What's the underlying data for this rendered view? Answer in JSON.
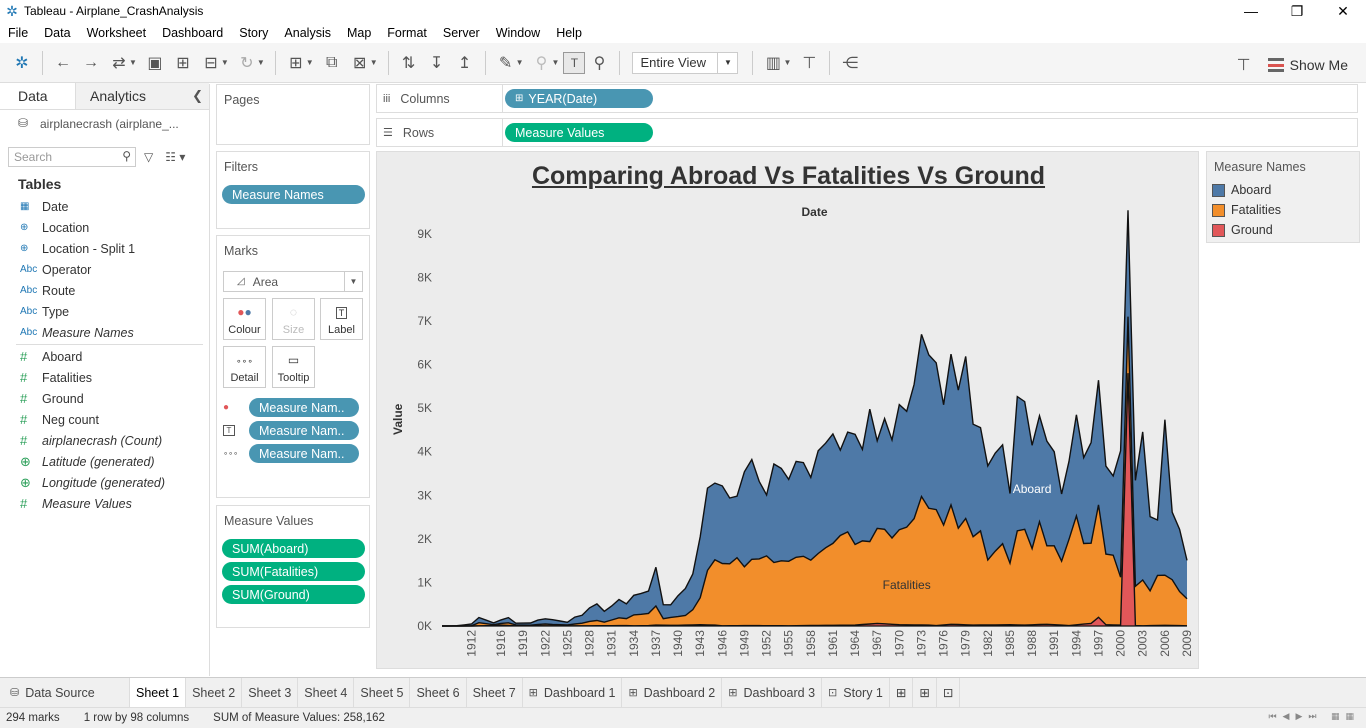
{
  "window": {
    "title": "Tableau - Airplane_CrashAnalysis",
    "minimize": "—",
    "restore": "❐",
    "close": "✕"
  },
  "menu": [
    "File",
    "Data",
    "Worksheet",
    "Dashboard",
    "Story",
    "Analysis",
    "Map",
    "Format",
    "Server",
    "Window",
    "Help"
  ],
  "toolbar": {
    "fit_value": "Entire View",
    "show_me_label": "Show Me"
  },
  "data_pane": {
    "tab_data": "Data",
    "tab_analytics": "Analytics",
    "datasource": "airplanecrash (airplane_...",
    "search_placeholder": "Search",
    "tables_heading": "Tables",
    "dimensions": [
      {
        "icon": "calendar-icon",
        "glyph": "▦",
        "label": "Date"
      },
      {
        "icon": "globe-icon",
        "glyph": "⊕",
        "label": "Location"
      },
      {
        "icon": "globe-split-icon",
        "glyph": "⊕",
        "label": "Location - Split 1"
      },
      {
        "icon": "abc-icon",
        "glyph": "Abc",
        "label": "Operator"
      },
      {
        "icon": "abc-icon",
        "glyph": "Abc",
        "label": "Route"
      },
      {
        "icon": "abc-icon",
        "glyph": "Abc",
        "label": "Type"
      },
      {
        "icon": "abc-icon",
        "glyph": "Abc",
        "label": "Measure Names",
        "italic": true
      }
    ],
    "measures": [
      {
        "icon": "hash-icon",
        "glyph": "#",
        "label": "Aboard"
      },
      {
        "icon": "hash-icon",
        "glyph": "#",
        "label": "Fatalities"
      },
      {
        "icon": "hash-icon",
        "glyph": "#",
        "label": "Ground"
      },
      {
        "icon": "hash-icon",
        "glyph": "#",
        "label": "Neg count"
      },
      {
        "icon": "hash-icon",
        "glyph": "#",
        "label": "airplanecrash (Count)",
        "italic": true
      },
      {
        "icon": "globe-icon",
        "glyph": "⊕",
        "label": "Latitude (generated)",
        "italic": true
      },
      {
        "icon": "globe-icon",
        "glyph": "⊕",
        "label": "Longitude (generated)",
        "italic": true
      },
      {
        "icon": "hash-icon",
        "glyph": "#",
        "label": "Measure Values",
        "italic": true
      }
    ]
  },
  "cards": {
    "pages_title": "Pages",
    "filters_title": "Filters",
    "filter_pill": "Measure Names",
    "marks_title": "Marks",
    "mark_type": "Area",
    "mark_buttons": {
      "colour": "Colour",
      "size": "Size",
      "label": "Label",
      "detail": "Detail",
      "tooltip": "Tooltip"
    },
    "mark_pills": [
      "Measure Nam..",
      "Measure Nam..",
      "Measure Nam.."
    ],
    "measure_values_title": "Measure Values",
    "measure_values_pills": [
      "SUM(Aboard)",
      "SUM(Fatalities)",
      "SUM(Ground)"
    ]
  },
  "shelves": {
    "columns_label": "Columns",
    "columns_pill": "YEAR(Date)",
    "rows_label": "Rows",
    "rows_pill": "Measure Values"
  },
  "legend": {
    "title": "Measure Names",
    "items": [
      {
        "label": "Aboard",
        "color": "#4e79a7"
      },
      {
        "label": "Fatalities",
        "color": "#f28e2b"
      },
      {
        "label": "Ground",
        "color": "#e15759"
      }
    ]
  },
  "chart_data": {
    "type": "area",
    "title": "Comparing Abroad Vs Fatalities Vs Ground",
    "xlabel": "Date",
    "ylabel": "Value",
    "ylim": [
      0,
      9500
    ],
    "y_ticks": [
      "0K",
      "1K",
      "2K",
      "3K",
      "4K",
      "5K",
      "6K",
      "7K",
      "8K",
      "9K"
    ],
    "x_tick_labels": [
      "1912",
      "1916",
      "1919",
      "1922",
      "1925",
      "1928",
      "1931",
      "1934",
      "1937",
      "1940",
      "1943",
      "1946",
      "1949",
      "1952",
      "1955",
      "1958",
      "1961",
      "1964",
      "1967",
      "1970",
      "1973",
      "1976",
      "1979",
      "1982",
      "1985",
      "1988",
      "1991",
      "1994",
      "1997",
      "2000",
      "2003",
      "2006",
      "2009"
    ],
    "annotations": [
      {
        "series": "Aboard",
        "text": "Aboard",
        "x": 1988,
        "y": 3050
      },
      {
        "series": "Fatalities",
        "text": "Fatalities",
        "x": 1971,
        "y": 850
      }
    ],
    "stacked": true,
    "series": [
      {
        "name": "Ground",
        "color": "#e15759",
        "x": [
          1908,
          1912,
          1913,
          1915,
          1916,
          1918,
          1920,
          1922,
          1925,
          1928,
          1931,
          1933,
          1934,
          1936,
          1937,
          1940,
          1943,
          1945,
          1946,
          1950,
          1955,
          1960,
          1964,
          1967,
          1970,
          1974,
          1975,
          1977,
          1980,
          1985,
          1987,
          1990,
          1993,
          1996,
          1997,
          1998,
          2000,
          2001,
          2002,
          2003,
          2006,
          2009
        ],
        "values": [
          0,
          0,
          5,
          10,
          20,
          5,
          8,
          5,
          5,
          5,
          8,
          10,
          5,
          10,
          20,
          15,
          30,
          20,
          5,
          10,
          5,
          15,
          20,
          60,
          30,
          20,
          10,
          40,
          20,
          30,
          20,
          40,
          10,
          60,
          200,
          30,
          20,
          5800,
          10,
          5,
          15,
          5
        ]
      },
      {
        "name": "Fatalities",
        "color": "#f28e2b",
        "x": [
          1908,
          1910,
          1912,
          1913,
          1915,
          1916,
          1917,
          1918,
          1920,
          1921,
          1922,
          1923,
          1925,
          1926,
          1927,
          1928,
          1929,
          1930,
          1931,
          1932,
          1933,
          1934,
          1935,
          1936,
          1937,
          1938,
          1939,
          1940,
          1941,
          1942,
          1943,
          1944,
          1945,
          1946,
          1947,
          1948,
          1949,
          1950,
          1951,
          1952,
          1953,
          1954,
          1955,
          1956,
          1957,
          1958,
          1959,
          1960,
          1961,
          1962,
          1963,
          1964,
          1965,
          1966,
          1967,
          1968,
          1969,
          1970,
          1971,
          1972,
          1973,
          1974,
          1975,
          1976,
          1977,
          1978,
          1979,
          1980,
          1981,
          1982,
          1983,
          1984,
          1985,
          1986,
          1987,
          1988,
          1989,
          1990,
          1991,
          1992,
          1993,
          1994,
          1995,
          1996,
          1997,
          1998,
          1999,
          2000,
          2001,
          2002,
          2003,
          2004,
          2005,
          2006,
          2007,
          2008,
          2009
        ],
        "values": [
          0,
          1,
          5,
          70,
          20,
          40,
          60,
          20,
          10,
          30,
          40,
          30,
          20,
          40,
          60,
          100,
          120,
          80,
          130,
          180,
          160,
          250,
          260,
          280,
          440,
          150,
          180,
          200,
          220,
          350,
          620,
          1250,
          1500,
          1430,
          1420,
          1560,
          1350,
          1520,
          1530,
          1600,
          1450,
          1490,
          1480,
          1570,
          1590,
          1500,
          1650,
          1780,
          1880,
          2060,
          2140,
          1850,
          1920,
          1890,
          2180,
          2170,
          1980,
          2180,
          2240,
          2440,
          2950,
          2680,
          2660,
          2290,
          2740,
          2210,
          2440,
          2030,
          2160,
          1490,
          1690,
          1860,
          1410,
          2160,
          2200,
          1750,
          2360,
          1800,
          1810,
          1470,
          1980,
          2500,
          1850,
          1840,
          2580,
          1620,
          1600,
          1100,
          1300,
          900,
          1050,
          800,
          1150,
          1150,
          1050,
          780,
          620
        ]
      },
      {
        "name": "Aboard",
        "color": "#4e79a7",
        "x": [
          1908,
          1910,
          1912,
          1913,
          1915,
          1916,
          1917,
          1918,
          1920,
          1921,
          1922,
          1923,
          1925,
          1926,
          1927,
          1928,
          1929,
          1930,
          1931,
          1932,
          1933,
          1934,
          1935,
          1936,
          1937,
          1938,
          1939,
          1940,
          1941,
          1942,
          1943,
          1944,
          1945,
          1946,
          1947,
          1948,
          1949,
          1950,
          1951,
          1952,
          1953,
          1954,
          1955,
          1956,
          1957,
          1958,
          1959,
          1960,
          1961,
          1962,
          1963,
          1964,
          1965,
          1966,
          1967,
          1968,
          1969,
          1970,
          1971,
          1972,
          1973,
          1974,
          1975,
          1976,
          1977,
          1978,
          1979,
          1980,
          1981,
          1982,
          1983,
          1984,
          1985,
          1986,
          1987,
          1988,
          1989,
          1990,
          1991,
          1992,
          1993,
          1994,
          1995,
          1996,
          1997,
          1998,
          1999,
          2000,
          2001,
          2002,
          2003,
          2004,
          2005,
          2006,
          2007,
          2008,
          2009
        ],
        "values": [
          0,
          5,
          40,
          120,
          40,
          80,
          120,
          40,
          50,
          100,
          120,
          110,
          60,
          160,
          180,
          310,
          380,
          250,
          320,
          420,
          340,
          450,
          480,
          510,
          890,
          320,
          290,
          480,
          620,
          820,
          1400,
          1890,
          1760,
          1780,
          1510,
          1410,
          2180,
          2290,
          1780,
          1400,
          2260,
          2120,
          1880,
          2200,
          2150,
          1900,
          2360,
          2400,
          2510,
          1960,
          2290,
          2530,
          2100,
          3040,
          2010,
          2540,
          2250,
          2870,
          2660,
          3080,
          3720,
          3520,
          3370,
          2760,
          3460,
          3170,
          3720,
          2580,
          2370,
          2160,
          2250,
          2270,
          1600,
          3080,
          2930,
          2370,
          2430,
          2400,
          2160,
          1540,
          1790,
          2320,
          1970,
          2310,
          2860,
          2020,
          1820,
          2900,
          2440,
          2430,
          3400,
          1700,
          1270,
          3570,
          1550,
          1430,
          880
        ]
      }
    ]
  },
  "sheet_tabs": {
    "data_source": "Data Source",
    "tabs": [
      {
        "label": "Sheet 1",
        "active": true,
        "kind": "sheet"
      },
      {
        "label": "Sheet 2",
        "kind": "sheet"
      },
      {
        "label": "Sheet 3",
        "kind": "sheet"
      },
      {
        "label": "Sheet 4",
        "kind": "sheet"
      },
      {
        "label": "Sheet 5",
        "kind": "sheet"
      },
      {
        "label": "Sheet 6",
        "kind": "sheet"
      },
      {
        "label": "Sheet 7",
        "kind": "sheet"
      },
      {
        "label": "Dashboard 1",
        "kind": "dashboard"
      },
      {
        "label": "Dashboard 2",
        "kind": "dashboard"
      },
      {
        "label": "Dashboard 3",
        "kind": "dashboard"
      },
      {
        "label": "Story 1",
        "kind": "story"
      }
    ]
  },
  "status": {
    "marks": "294 marks",
    "dims": "1 row by 98 columns",
    "sum": "SUM of Measure Values: 258,162"
  }
}
